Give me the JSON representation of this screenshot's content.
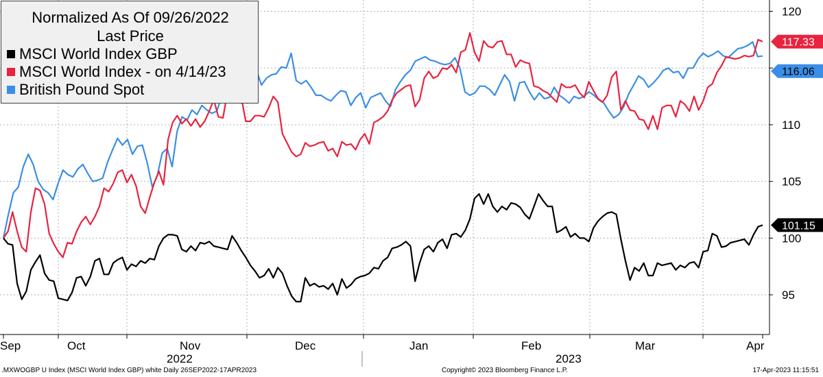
{
  "legend": {
    "title": "Normalized As Of 09/26/2022",
    "subtitle": "Last Price"
  },
  "footer": {
    "left": ".MXWOGBP U Index (MSCI World Index GBP) white  Daily 26SEP2022-17APR2023",
    "center": "Copyright© 2023 Bloomberg Finance L.P.",
    "right": "17-Apr-2023 11:15:51"
  },
  "chart_data": {
    "type": "line",
    "ylim": [
      91.5,
      121
    ],
    "y_ticks": [
      "95",
      "100",
      "105",
      "110",
      "115",
      "120"
    ],
    "y_tick_values": [
      95,
      100,
      105,
      110,
      115,
      120
    ],
    "x_month_labels": [
      "Sep",
      "Oct",
      "Nov",
      "Dec",
      "Jan",
      "Feb",
      "Mar",
      "Apr"
    ],
    "x_year_labels": [
      "2022",
      "2023"
    ],
    "grid": true,
    "legend_position": "top-left",
    "series": [
      {
        "name": "MSCI World Index GBP",
        "color": "#000000",
        "last_label": "101.15",
        "values": [
          100.0,
          99.5,
          99.4,
          96.0,
          94.6,
          95.3,
          97.2,
          97.9,
          98.5,
          96.9,
          96.3,
          96.2,
          94.7,
          94.6,
          94.5,
          95.2,
          96.5,
          96.6,
          95.8,
          96.6,
          98.0,
          98.2,
          96.8,
          96.8,
          97.8,
          98.1,
          98.3,
          97.2,
          97.7,
          97.5,
          98.0,
          97.8,
          98.2,
          98.1,
          99.3,
          100.0,
          100.3,
          100.3,
          100.2,
          99.0,
          98.8,
          99.3,
          98.9,
          99.6,
          99.5,
          99.7,
          99.3,
          99.2,
          99.1,
          99.0,
          100.2,
          99.6,
          98.9,
          98.3,
          97.6,
          97.1,
          96.5,
          96.7,
          97.3,
          96.5,
          97.4,
          96.9,
          95.8,
          94.9,
          94.4,
          94.4,
          96.5,
          95.8,
          96.0,
          95.7,
          95.8,
          95.5,
          96.0,
          95.0,
          96.4,
          95.6,
          95.9,
          96.4,
          96.6,
          96.7,
          96.9,
          97.4,
          97.3,
          98.0,
          98.3,
          99.1,
          99.2,
          99.4,
          99.7,
          99.3,
          96.2,
          97.8,
          99.0,
          99.3,
          98.8,
          99.6,
          99.9,
          99.1,
          100.3,
          100.4,
          100.1,
          100.7,
          101.7,
          103.5,
          103.9,
          103.0,
          103.9,
          102.8,
          102.3,
          102.8,
          102.5,
          103.1,
          103.0,
          102.7,
          102.1,
          101.7,
          102.8,
          103.9,
          103.3,
          102.8,
          102.8,
          100.5,
          100.7,
          101.0,
          100.1,
          100.4,
          100.0,
          100.0,
          99.7,
          100.9,
          101.5,
          101.9,
          102.2,
          102.3,
          102.1,
          99.9,
          98.0,
          96.3,
          97.4,
          97.1,
          97.8,
          96.7,
          96.7,
          97.8,
          97.6,
          97.7,
          97.8,
          97.2,
          97.6,
          97.4,
          97.8,
          97.9,
          97.4,
          98.8,
          98.9,
          100.4,
          100.2,
          99.2,
          99.3,
          99.6,
          99.7,
          99.8,
          99.9,
          99.4,
          100.3,
          101.0,
          101.15
        ],
        "start_day": 0,
        "step_days": 1.2
      },
      {
        "name": "MSCI World Index -  on 4/14/23",
        "color": "#e8233f",
        "last_label": "117.33",
        "values": [
          100.0,
          100.6,
          102.3,
          100.6,
          99.2,
          98.8,
          102.3,
          104.4,
          104.2,
          103.0,
          100.4,
          99.5,
          98.8,
          98.3,
          99.6,
          99.5,
          100.6,
          101.4,
          101.9,
          101.2,
          101.9,
          102.8,
          104.4,
          104.1,
          104.8,
          105.8,
          106.0,
          104.9,
          105.6,
          104.6,
          102.8,
          102.2,
          103.6,
          104.9,
          105.9,
          104.7,
          108.7,
          110.2,
          110.8,
          110.1,
          110.5,
          109.9,
          110.5,
          109.8,
          110.3,
          111.2,
          112.2,
          110.7,
          110.6,
          112.9,
          113.9,
          113.2,
          112.4,
          110.3,
          110.3,
          110.8,
          110.8,
          110.7,
          111.5,
          112.5,
          112.0,
          109.2,
          108.4,
          107.6,
          107.2,
          107.4,
          108.4,
          108.1,
          108.2,
          108.4,
          108.5,
          107.7,
          107.9,
          107.2,
          108.5,
          108.2,
          108.3,
          107.8,
          108.7,
          109.2,
          108.3,
          110.2,
          110.4,
          110.7,
          111.2,
          112.2,
          112.8,
          113.1,
          113.4,
          113.5,
          111.6,
          112.2,
          114.1,
          114.7,
          114.1,
          114.3,
          115.0,
          114.9,
          115.3,
          114.6,
          116.4,
          116.6,
          118.1,
          116.4,
          115.6,
          117.4,
          116.9,
          116.8,
          117.3,
          117.4,
          116.2,
          116.2,
          115.1,
          115.7,
          115.5,
          115.4,
          113.4,
          113.3,
          113.0,
          112.8,
          112.4,
          112.0,
          113.6,
          113.3,
          113.3,
          113.5,
          112.8,
          112.4,
          113.8,
          113.0,
          112.3,
          112.0,
          112.6,
          114.2,
          114.7,
          111.3,
          112.1,
          111.3,
          111.2,
          110.5,
          110.4,
          109.6,
          110.8,
          109.6,
          111.5,
          111.7,
          111.7,
          110.7,
          112.1,
          111.8,
          111.2,
          112.5,
          111.3,
          112.1,
          113.3,
          113.6,
          114.6,
          115.2,
          116.0,
          115.9,
          115.8,
          115.9,
          116.1,
          116.0,
          116.1,
          117.5,
          117.33
        ],
        "start_day": 0,
        "step_days": 1.2
      },
      {
        "name": "British Pound Spot",
        "color": "#3b8ee5",
        "last_label": "116.06",
        "values": [
          100.0,
          102.1,
          104.0,
          104.5,
          106.3,
          107.4,
          106.5,
          105.0,
          104.3,
          104.0,
          103.4,
          104.8,
          106.0,
          105.6,
          105.4,
          106.1,
          106.5,
          105.7,
          105.0,
          105.1,
          105.3,
          106.7,
          107.8,
          108.8,
          108.2,
          108.7,
          107.4,
          108.1,
          108.2,
          106.6,
          104.5,
          105.5,
          107.5,
          107.9,
          106.3,
          109.4,
          110.7,
          110.4,
          111.3,
          110.9,
          111.7,
          111.3,
          111.0,
          111.2,
          112.5,
          112.8,
          113.5,
          112.1,
          111.9,
          113.3,
          115.2,
          114.8,
          113.5,
          114.1,
          114.4,
          114.5,
          115.1,
          115.0,
          116.3,
          113.9,
          113.6,
          113.9,
          113.3,
          112.6,
          112.6,
          112.3,
          112.1,
          112.6,
          113.0,
          112.9,
          111.7,
          112.4,
          112.8,
          111.5,
          112.4,
          112.6,
          112.8,
          112.1,
          111.6,
          113.1,
          113.8,
          114.4,
          114.8,
          115.6,
          115.8,
          116.0,
          115.7,
          115.6,
          115.4,
          115.3,
          115.4,
          115.9,
          115.0,
          112.9,
          112.6,
          112.8,
          113.4,
          113.4,
          113.1,
          112.6,
          113.5,
          114.4,
          113.8,
          112.1,
          113.7,
          113.8,
          112.9,
          112.2,
          112.8,
          112.3,
          112.4,
          113.3,
          112.6,
          112.3,
          111.9,
          112.5,
          112.3,
          112.5,
          112.9,
          112.6,
          112.2,
          111.9,
          111.2,
          110.6,
          110.9,
          111.6,
          112.7,
          113.5,
          114.3,
          114.0,
          113.3,
          113.7,
          114.2,
          114.8,
          115.0,
          114.6,
          114.7,
          114.1,
          115.0,
          115.0,
          115.8,
          116.3,
          116.0,
          116.2,
          116.5,
          116.1,
          115.9,
          116.3,
          116.7,
          116.8,
          117.0,
          117.3,
          116.0,
          116.06
        ],
        "start_day": 0,
        "step_days": 1.43
      }
    ]
  }
}
